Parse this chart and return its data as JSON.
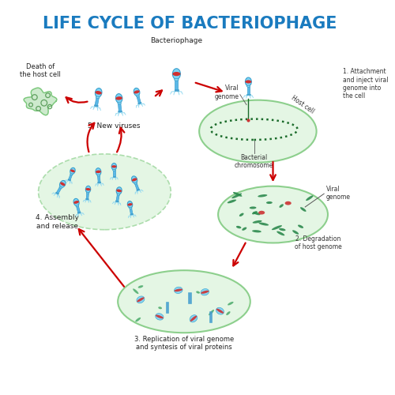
{
  "title": "LIFE CYCLE OF BACTERIOPHAGE",
  "title_color": "#1a7bbf",
  "title_fontsize": 15,
  "background_color": "#ffffff",
  "cell_color": "#e0f5e0",
  "cell_edge_color": "#7bc87b",
  "cell_edge_color2": "#a0d8a0",
  "arrow_color": "#cc0000",
  "phage_body_color": "#5bb8e8",
  "phage_head_color": "#7dd4f5",
  "phage_stripe": "#d03030",
  "labels": {
    "bacteriophage": "Bacteriophage",
    "step1": "1. Attachment\nand inject viral\ngenome into\nthe cell",
    "step2": "2. Degradation\nof host genome",
    "step3": "3. Replication of viral genome\nand syntesis of viral proteins",
    "step4": "4. Assembly\nand release",
    "step5": "5. New viruses",
    "death": "Death of\nthe host cell",
    "viral_genome_top": "Viral\ngenome",
    "host_cell": "Host cell",
    "bacterial_chromosome": "Bacterial\nchromosome",
    "viral_genome_right": "Viral\ngenome"
  },
  "figsize": [
    5.0,
    5.0
  ],
  "dpi": 100
}
